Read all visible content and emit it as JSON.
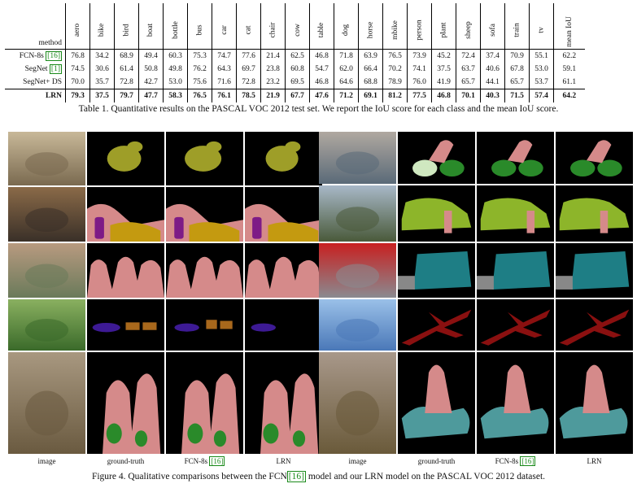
{
  "table": {
    "method_header": "method",
    "classes": [
      "aero",
      "bike",
      "bird",
      "boat",
      "bottle",
      "bus",
      "car",
      "cat",
      "chair",
      "cow",
      "table",
      "dog",
      "horse",
      "mbike",
      "person",
      "plant",
      "sheep",
      "sofa",
      "train",
      "tv"
    ],
    "mean_header": "mean IoU",
    "rows": [
      {
        "method": "FCN-8s",
        "cite": "[16]",
        "values": [
          "76.8",
          "34.2",
          "68.9",
          "49.4",
          "60.3",
          "75.3",
          "74.7",
          "77.6",
          "21.4",
          "62.5",
          "46.8",
          "71.8",
          "63.9",
          "76.5",
          "73.9",
          "45.2",
          "72.4",
          "37.4",
          "70.9",
          "55.1"
        ],
        "bold": [
          4,
          11,
          16
        ],
        "mean": "62.2"
      },
      {
        "method": "SegNet",
        "cite": "[1]",
        "values": [
          "74.5",
          "30.6",
          "61.4",
          "50.8",
          "49.8",
          "76.2",
          "64.3",
          "69.7",
          "23.8",
          "60.8",
          "54.7",
          "62.0",
          "66.4",
          "70.2",
          "74.1",
          "37.5",
          "63.7",
          "40.6",
          "67.8",
          "53.0"
        ],
        "bold": [
          3,
          8,
          10
        ],
        "mean": "59.1"
      },
      {
        "method": "SegNet+ DS",
        "cite": "",
        "values": [
          "70.0",
          "35.7",
          "72.8",
          "42.7",
          "53.0",
          "75.6",
          "71.6",
          "72.8",
          "23.2",
          "69.5",
          "46.8",
          "64.6",
          "68.8",
          "78.9",
          "76.0",
          "41.9",
          "65.7",
          "44.1",
          "65.7",
          "53.7"
        ],
        "bold": [
          9,
          17
        ],
        "mean": "61.1"
      },
      {
        "method": "LRN",
        "cite": "",
        "values": [
          "79.3",
          "37.5",
          "79.7",
          "47.7",
          "58.3",
          "76.5",
          "76.1",
          "78.5",
          "21.9",
          "67.7",
          "47.6",
          "71.2",
          "69.1",
          "81.2",
          "77.5",
          "46.8",
          "70.1",
          "40.3",
          "71.5",
          "57.4"
        ],
        "bold": [
          0,
          1,
          2,
          5,
          6,
          7,
          12,
          13,
          14,
          15,
          18,
          19
        ],
        "mean": "64.2",
        "mean_bold": true
      }
    ]
  },
  "table_caption": "Table 1. Quantitative results on the PASCAL VOC 2012 test set. We report the IoU score for each class and the mean IoU score.",
  "figure": {
    "column_labels": [
      "image",
      "ground-truth",
      "FCN-8s",
      "LRN",
      "image",
      "ground-truth",
      "FCN-8s",
      "LRN"
    ],
    "fcn_cite": "[16]",
    "left_rows": [
      "bird",
      "dining-table",
      "people",
      "cows",
      "bikers"
    ],
    "right_rows": [
      "cyclist",
      "train",
      "bus",
      "aeroplane",
      "motorbike"
    ],
    "colors": {
      "bird": "#9e9e28",
      "person": "#d58a8a",
      "bottle": "#7d1b86",
      "table": "#c49a10",
      "cow": "#3d1a94",
      "sheep": "#a8681c",
      "bicycle": "#2a8a2a",
      "train": "#8db52a",
      "bus": "#1e7e85",
      "aeroplane": "#8a1010",
      "motorbike": "#4e9a9c"
    }
  },
  "figure_caption_pre": "Figure 4. Qualitative comparisons between the FCN",
  "figure_caption_cite": "[16]",
  "figure_caption_post": " model and our LRN model on the PASCAL VOC 2012 dataset."
}
